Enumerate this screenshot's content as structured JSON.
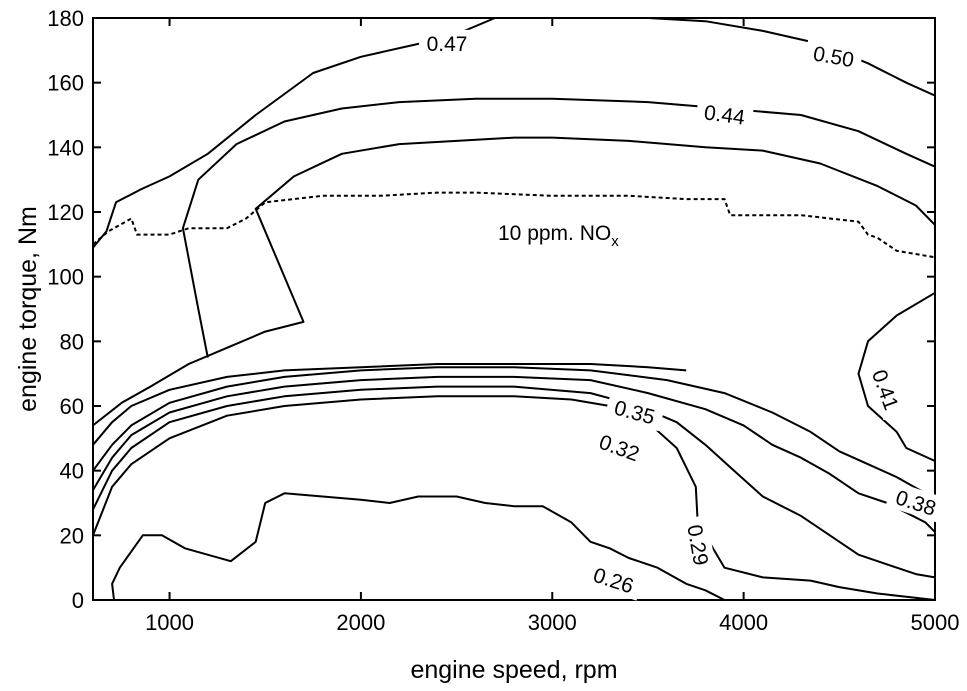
{
  "chart_data": {
    "type": "contour",
    "xlabel": "engine speed, rpm",
    "ylabel": "engine torque, Nm",
    "xlim": [
      600,
      5000
    ],
    "ylim": [
      0,
      180
    ],
    "x_ticks": [
      "1000",
      "2000",
      "3000",
      "4000",
      "5000"
    ],
    "y_ticks": [
      "0",
      "20",
      "40",
      "60",
      "80",
      "100",
      "120",
      "140",
      "160",
      "180"
    ],
    "grid": false,
    "contours": [
      {
        "level": 0.26,
        "label": "0.26",
        "points": [
          [
            710,
            0
          ],
          [
            700,
            5
          ],
          [
            740,
            10
          ],
          [
            860,
            20
          ],
          [
            960,
            20
          ],
          [
            1080,
            16
          ],
          [
            1320,
            12
          ],
          [
            1450,
            18
          ],
          [
            1500,
            30
          ],
          [
            1600,
            33
          ],
          [
            1800,
            32
          ],
          [
            2000,
            31
          ],
          [
            2150,
            30
          ],
          [
            2300,
            32
          ],
          [
            2500,
            32
          ],
          [
            2650,
            30
          ],
          [
            2800,
            29
          ],
          [
            2950,
            29
          ],
          [
            3100,
            24
          ],
          [
            3200,
            18
          ],
          [
            3300,
            16
          ],
          [
            3400,
            13
          ],
          [
            3550,
            10
          ],
          [
            3700,
            5
          ],
          [
            3800,
            3
          ],
          [
            3900,
            0
          ]
        ]
      },
      {
        "level": 0.29,
        "label": "0.29",
        "points": [
          [
            600,
            20
          ],
          [
            700,
            35
          ],
          [
            800,
            42
          ],
          [
            1000,
            50
          ],
          [
            1300,
            57
          ],
          [
            1600,
            60
          ],
          [
            2000,
            62
          ],
          [
            2400,
            63
          ],
          [
            2800,
            63
          ],
          [
            3100,
            62
          ],
          [
            3300,
            60
          ],
          [
            3500,
            55
          ],
          [
            3650,
            47
          ],
          [
            3750,
            35
          ],
          [
            3760,
            24
          ],
          [
            3850,
            15
          ],
          [
            3900,
            10
          ],
          [
            4100,
            7
          ],
          [
            4350,
            6
          ],
          [
            4500,
            4
          ],
          [
            4700,
            2
          ],
          [
            4850,
            1
          ],
          [
            5000,
            0
          ]
        ]
      },
      {
        "level": 0.32,
        "label": "0.32",
        "points": [
          [
            600,
            28
          ],
          [
            700,
            40
          ],
          [
            800,
            47
          ],
          [
            1000,
            55
          ],
          [
            1300,
            60
          ],
          [
            1600,
            63
          ],
          [
            2000,
            65
          ],
          [
            2400,
            66
          ],
          [
            2800,
            66
          ],
          [
            3200,
            64
          ],
          [
            3450,
            60
          ],
          [
            3650,
            55
          ],
          [
            3800,
            48
          ],
          [
            3950,
            40
          ],
          [
            4100,
            32
          ],
          [
            4300,
            26
          ],
          [
            4450,
            20
          ],
          [
            4600,
            14
          ],
          [
            4750,
            11
          ],
          [
            4900,
            8
          ],
          [
            5000,
            7
          ]
        ]
      },
      {
        "level": 0.35,
        "label": "0.35",
        "points": [
          [
            600,
            34
          ],
          [
            700,
            44
          ],
          [
            800,
            51
          ],
          [
            1000,
            58
          ],
          [
            1300,
            63
          ],
          [
            1600,
            66
          ],
          [
            2000,
            68
          ],
          [
            2400,
            69
          ],
          [
            2800,
            69
          ],
          [
            3200,
            68
          ],
          [
            3500,
            64
          ],
          [
            3800,
            59
          ],
          [
            4000,
            54
          ],
          [
            4150,
            48
          ],
          [
            4300,
            44
          ],
          [
            4450,
            39
          ],
          [
            4600,
            33
          ],
          [
            4750,
            30
          ],
          [
            4850,
            27
          ],
          [
            4950,
            24
          ],
          [
            5000,
            21
          ]
        ]
      },
      {
        "level": 0.38,
        "label": "0.38",
        "points": [
          [
            600,
            40
          ],
          [
            700,
            48
          ],
          [
            800,
            54
          ],
          [
            1000,
            61
          ],
          [
            1300,
            66
          ],
          [
            1600,
            69
          ],
          [
            2000,
            71
          ],
          [
            2400,
            72
          ],
          [
            2800,
            72
          ],
          [
            3200,
            71
          ],
          [
            3600,
            68
          ],
          [
            3900,
            64
          ],
          [
            4150,
            58
          ],
          [
            4350,
            52
          ],
          [
            4500,
            46
          ],
          [
            4650,
            42
          ],
          [
            4800,
            38
          ],
          [
            4950,
            33
          ],
          [
            5000,
            30
          ]
        ]
      },
      {
        "level": 0.41,
        "label": "0.41",
        "points": [
          [
            600,
            48
          ],
          [
            700,
            55
          ],
          [
            800,
            60
          ],
          [
            1000,
            65
          ],
          [
            1300,
            69
          ],
          [
            1600,
            71
          ],
          [
            2000,
            72
          ],
          [
            2400,
            73
          ],
          [
            2800,
            73
          ],
          [
            3200,
            73
          ],
          [
            3500,
            72
          ],
          [
            3700,
            71
          ]
        ]
      },
      {
        "level": 0.41,
        "label": "",
        "points": [
          [
            600,
            54
          ],
          [
            750,
            61
          ],
          [
            900,
            66
          ],
          [
            1100,
            73
          ],
          [
            1300,
            78
          ],
          [
            1500,
            83
          ],
          [
            1700,
            86
          ],
          [
            1450,
            121
          ],
          [
            1650,
            131
          ],
          [
            1900,
            138
          ],
          [
            2200,
            141
          ],
          [
            2500,
            142
          ],
          [
            2800,
            143
          ],
          [
            3000,
            143
          ],
          [
            3400,
            142
          ],
          [
            3800,
            140
          ],
          [
            4100,
            139
          ],
          [
            4400,
            135
          ],
          [
            4700,
            128
          ],
          [
            4900,
            122
          ],
          [
            5000,
            116
          ]
        ]
      },
      {
        "level": 0.44,
        "label": "0.44",
        "points": [
          [
            1200,
            75
          ],
          [
            1150,
            90
          ],
          [
            1070,
            115
          ],
          [
            1150,
            130
          ],
          [
            1350,
            141
          ],
          [
            1600,
            148
          ],
          [
            1900,
            152
          ],
          [
            2200,
            154
          ],
          [
            2600,
            155
          ],
          [
            3000,
            155
          ],
          [
            3500,
            154
          ],
          [
            3900,
            152
          ],
          [
            4300,
            150
          ],
          [
            4600,
            145
          ],
          [
            4850,
            138
          ],
          [
            5000,
            134
          ]
        ]
      },
      {
        "level": 0.47,
        "label": "0.47",
        "points": [
          [
            600,
            109
          ],
          [
            670,
            114
          ],
          [
            720,
            123
          ],
          [
            850,
            127
          ],
          [
            1000,
            131
          ],
          [
            1200,
            138
          ],
          [
            1450,
            150
          ],
          [
            1750,
            163
          ],
          [
            2000,
            168
          ],
          [
            2300,
            172
          ],
          [
            2500,
            175
          ],
          [
            2700,
            180
          ]
        ]
      },
      {
        "level": 0.5,
        "label": "0.50",
        "points": [
          [
            3500,
            180
          ],
          [
            3800,
            179
          ],
          [
            4100,
            176
          ],
          [
            4400,
            172
          ],
          [
            4650,
            166
          ],
          [
            4850,
            160
          ],
          [
            5000,
            156
          ]
        ]
      },
      {
        "level": 0.41,
        "label": "0.41",
        "points": [
          [
            5000,
            95
          ],
          [
            4800,
            88
          ],
          [
            4650,
            80
          ],
          [
            4600,
            70
          ],
          [
            4650,
            60
          ],
          [
            4800,
            52
          ],
          [
            4850,
            47
          ],
          [
            5000,
            43
          ]
        ]
      }
    ],
    "annotations": [
      "10 ppm. NO",
      "x"
    ],
    "nox_boundary": {
      "name": "10 ppm. NOx",
      "points": [
        [
          600,
          110
        ],
        [
          680,
          114
        ],
        [
          800,
          118
        ],
        [
          830,
          113
        ],
        [
          1000,
          113
        ],
        [
          1100,
          115
        ],
        [
          1300,
          115
        ],
        [
          1400,
          118
        ],
        [
          1500,
          123
        ],
        [
          1800,
          125
        ],
        [
          2100,
          125
        ],
        [
          2400,
          126
        ],
        [
          2600,
          126
        ],
        [
          3000,
          125
        ],
        [
          3400,
          125
        ],
        [
          3700,
          124
        ],
        [
          3900,
          124
        ],
        [
          3930,
          119
        ],
        [
          4300,
          119
        ],
        [
          4600,
          117
        ],
        [
          4650,
          113
        ],
        [
          4700,
          112
        ],
        [
          4800,
          108
        ],
        [
          5000,
          106
        ]
      ]
    }
  }
}
